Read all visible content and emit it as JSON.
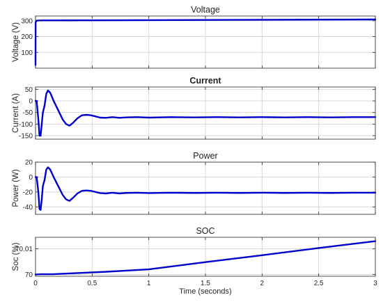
{
  "chart_data": [
    {
      "type": "line",
      "title": "Voltage",
      "ylabel": "Voltage (V)",
      "xlabel": "",
      "xlim": [
        0,
        3
      ],
      "ylim": [
        0,
        330
      ],
      "grid": true,
      "x_ticks": [
        0,
        0.5,
        1,
        1.5,
        2,
        2.5,
        3
      ],
      "x_tick_labels": [],
      "y_ticks": [
        100,
        200,
        300
      ],
      "y_tick_labels": [
        "100",
        "200",
        "300"
      ],
      "series": [
        {
          "color": "#0000cc",
          "x": [
            0,
            0.001,
            0.01,
            0.05,
            0.1,
            0.3,
            0.5,
            1.0,
            1.5,
            2.0,
            2.5,
            3.0
          ],
          "y": [
            20,
            290,
            301,
            302,
            302,
            302.5,
            303,
            304,
            305,
            306,
            307,
            308
          ]
        }
      ]
    },
    {
      "type": "line",
      "title": "Current",
      "title_bold": true,
      "ylabel": "Current (A)",
      "xlabel": "",
      "xlim": [
        0,
        3
      ],
      "ylim": [
        -165,
        60
      ],
      "grid": true,
      "x_ticks": [
        0,
        0.5,
        1,
        1.5,
        2,
        2.5,
        3
      ],
      "x_tick_labels": [],
      "y_ticks": [
        -150,
        -100,
        -50,
        0,
        50
      ],
      "y_tick_labels": [
        "-150",
        "-100",
        "-50",
        "0",
        "50"
      ],
      "series": [
        {
          "color": "#0000cc",
          "x": [
            0,
            0.01,
            0.025,
            0.035,
            0.045,
            0.055,
            0.065,
            0.08,
            0.095,
            0.11,
            0.13,
            0.16,
            0.2,
            0.24,
            0.27,
            0.3,
            0.33,
            0.37,
            0.41,
            0.45,
            0.49,
            0.53,
            0.57,
            0.62,
            0.68,
            0.74,
            0.8,
            0.9,
            1.0,
            1.2,
            1.4,
            1.6,
            1.8,
            2.0,
            2.2,
            2.4,
            2.6,
            2.8,
            3.0
          ],
          "y": [
            0,
            0,
            -80,
            -150,
            -150,
            -100,
            -50,
            -20,
            30,
            45,
            35,
            0,
            -40,
            -80,
            -100,
            -107,
            -95,
            -75,
            -62,
            -60,
            -62,
            -67,
            -72,
            -73,
            -70,
            -73,
            -71,
            -70,
            -72,
            -70,
            -71,
            -70,
            -71,
            -70,
            -71,
            -70,
            -71,
            -70,
            -70
          ]
        }
      ]
    },
    {
      "type": "line",
      "title": "Power",
      "ylabel": "Power (W)",
      "xlabel": "",
      "xlim": [
        0,
        3
      ],
      "ylim": [
        -50,
        20
      ],
      "grid": true,
      "x_ticks": [
        0,
        0.5,
        1,
        1.5,
        2,
        2.5,
        3
      ],
      "x_tick_labels": [],
      "y_ticks": [
        -40,
        -20,
        0,
        20
      ],
      "y_tick_labels": [
        "-40",
        "-20",
        "0",
        "20"
      ],
      "series": [
        {
          "color": "#0000cc",
          "x": [
            0,
            0.01,
            0.025,
            0.035,
            0.045,
            0.055,
            0.065,
            0.08,
            0.095,
            0.11,
            0.13,
            0.16,
            0.2,
            0.24,
            0.27,
            0.3,
            0.33,
            0.37,
            0.41,
            0.45,
            0.49,
            0.53,
            0.57,
            0.62,
            0.68,
            0.74,
            0.8,
            0.9,
            1.0,
            1.2,
            1.4,
            1.6,
            1.8,
            2.0,
            2.2,
            2.4,
            2.6,
            2.8,
            3.0
          ],
          "y": [
            0,
            0,
            -20,
            -43,
            -44,
            -30,
            -12,
            -4,
            10,
            13,
            10,
            0,
            -12,
            -24,
            -30,
            -32,
            -28,
            -22,
            -18.5,
            -18,
            -18.5,
            -20,
            -21.5,
            -22,
            -21,
            -22,
            -21.3,
            -21,
            -21.5,
            -21,
            -21.3,
            -21,
            -21.3,
            -21,
            -21.3,
            -21,
            -21.3,
            -21,
            -21
          ]
        }
      ]
    },
    {
      "type": "line",
      "title": "SOC",
      "ylabel": "Soc (%)",
      "xlabel": "Time (seconds)",
      "xlim": [
        0,
        3
      ],
      "ylim": [
        69.9993,
        70.0145
      ],
      "grid": true,
      "x_ticks": [
        0,
        0.5,
        1,
        1.5,
        2,
        2.5,
        3
      ],
      "x_tick_labels": [
        "0",
        "0.5",
        "1",
        "1.5",
        "2",
        "2.5",
        "3"
      ],
      "y_ticks": [
        70,
        70.01
      ],
      "y_tick_labels": [
        "70",
        "70.01"
      ],
      "series": [
        {
          "color": "#0000cc",
          "x": [
            0,
            0.05,
            0.1,
            0.15,
            0.2,
            0.25,
            0.3,
            0.4,
            0.5,
            0.6,
            0.8,
            1.0,
            1.5,
            2.0,
            2.5,
            3.0
          ],
          "y": [
            70.0,
            70.0001,
            70.0001,
            70.0001,
            70.0002,
            70.0003,
            70.0004,
            70.0006,
            70.0008,
            70.001,
            70.0015,
            70.002,
            70.0048,
            70.0075,
            70.0103,
            70.013
          ]
        }
      ]
    }
  ]
}
